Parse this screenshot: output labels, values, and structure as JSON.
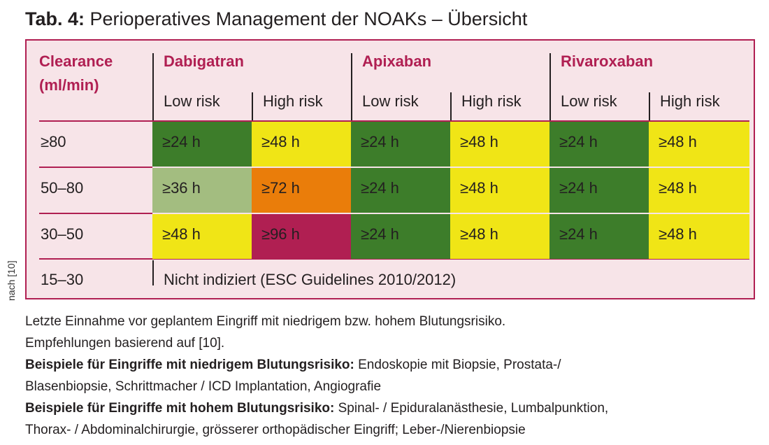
{
  "title": {
    "prefix": "Tab. 4:",
    "text": "Perioperatives Management der NOAKs – Übersicht"
  },
  "side_label": "nach [10]",
  "table": {
    "clearance_header_line1": "Clearance",
    "clearance_header_line2": "(ml/min)",
    "drugs": [
      "Dabigatran",
      "Apixaban",
      "Rivaroxaban"
    ],
    "risk_labels": [
      "Low risk",
      "High risk",
      "Low risk",
      "High risk",
      "Low risk",
      "High risk"
    ],
    "rows": [
      {
        "label": "≥80",
        "cells": [
          {
            "text": "≥24 h",
            "color": "#3d7d2a"
          },
          {
            "text": "≥48 h",
            "color": "#f0e516"
          },
          {
            "text": "≥24 h",
            "color": "#3d7d2a"
          },
          {
            "text": "≥48 h",
            "color": "#f0e516"
          },
          {
            "text": "≥24 h",
            "color": "#3d7d2a"
          },
          {
            "text": "≥48 h",
            "color": "#f0e516"
          }
        ]
      },
      {
        "label": "50–80",
        "cells": [
          {
            "text": "≥36 h",
            "color": "#a3bd80"
          },
          {
            "text": "≥72 h",
            "color": "#ea7d0a"
          },
          {
            "text": "≥24 h",
            "color": "#3d7d2a"
          },
          {
            "text": "≥48 h",
            "color": "#f0e516"
          },
          {
            "text": "≥24 h",
            "color": "#3d7d2a"
          },
          {
            "text": "≥48 h",
            "color": "#f0e516"
          }
        ]
      },
      {
        "label": "30–50",
        "cells": [
          {
            "text": "≥48 h",
            "color": "#f0e516"
          },
          {
            "text": "≥96 h",
            "color": "#b01f52"
          },
          {
            "text": "≥24 h",
            "color": "#3d7d2a"
          },
          {
            "text": "≥48 h",
            "color": "#f0e516"
          },
          {
            "text": "≥24 h",
            "color": "#3d7d2a"
          },
          {
            "text": "≥48 h",
            "color": "#f0e516"
          }
        ]
      }
    ],
    "last_row_label": "15–30",
    "last_row_text": "Nicht indiziert (ESC Guidelines 2010/2012)"
  },
  "notes": {
    "line1": "Letzte Einnahme vor geplantem Eingriff mit niedrigem bzw. hohem Blutungsrisiko.",
    "line2": "Empfehlungen basierend auf [10].",
    "low_bold": "Beispiele für Eingriffe mit niedrigem Blutungsrisiko:",
    "low_text": " Endoskopie mit Biopsie, Prostata-/",
    "low_text2": "Blasenbiopsie, Schrittmacher / ICD Implantation, Angiografie",
    "high_bold": "Beispiele für Eingriffe mit hohem Blutungsrisiko:",
    "high_text": " Spinal- / Epiduralanästhesie, Lumbalpunktion,",
    "high_text2": "Thorax- / Abdominalchirurgie, grösserer orthopädischer Eingriff; Leber-/Nierenbiopsie"
  }
}
